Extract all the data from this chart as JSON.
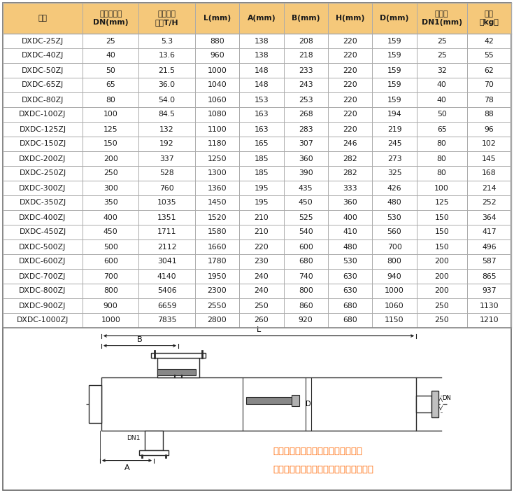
{
  "header_bg": "#F5C87A",
  "header_text_color": "#1a1a1a",
  "border_color": "#AAAAAA",
  "columns": [
    "型号",
    "进出口直径\nDN(mm)",
    "最大处理\n流量T/H",
    "L(mm)",
    "A(mm)",
    "B(mm)",
    "H(mm)",
    "D(mm)",
    "排污口\nDN1(mm)",
    "重量\n（kg）"
  ],
  "col_weights": [
    1.35,
    0.95,
    0.95,
    0.75,
    0.75,
    0.75,
    0.75,
    0.75,
    0.85,
    0.75
  ],
  "rows": [
    [
      "DXDC-25ZJ",
      "25",
      "5.3",
      "880",
      "138",
      "208",
      "220",
      "159",
      "25",
      "42"
    ],
    [
      "DXDC-40ZJ",
      "40",
      "13.6",
      "960",
      "138",
      "218",
      "220",
      "159",
      "25",
      "55"
    ],
    [
      "DXDC-50ZJ",
      "50",
      "21.5",
      "1000",
      "148",
      "233",
      "220",
      "159",
      "32",
      "62"
    ],
    [
      "DXDC-65ZJ",
      "65",
      "36.0",
      "1040",
      "148",
      "243",
      "220",
      "159",
      "40",
      "70"
    ],
    [
      "DXDC-80ZJ",
      "80",
      "54.0",
      "1060",
      "153",
      "253",
      "220",
      "159",
      "40",
      "78"
    ],
    [
      "DXDC-100ZJ",
      "100",
      "84.5",
      "1080",
      "163",
      "268",
      "220",
      "194",
      "50",
      "88"
    ],
    [
      "DXDC-125ZJ",
      "125",
      "132",
      "1100",
      "163",
      "283",
      "220",
      "219",
      "65",
      "96"
    ],
    [
      "DXDC-150ZJ",
      "150",
      "192",
      "1180",
      "165",
      "307",
      "246",
      "245",
      "80",
      "102"
    ],
    [
      "DXDC-200ZJ",
      "200",
      "337",
      "1250",
      "185",
      "360",
      "282",
      "273",
      "80",
      "145"
    ],
    [
      "DXDC-250ZJ",
      "250",
      "528",
      "1300",
      "185",
      "390",
      "282",
      "325",
      "80",
      "168"
    ],
    [
      "DXDC-300ZJ",
      "300",
      "760",
      "1360",
      "195",
      "435",
      "333",
      "426",
      "100",
      "214"
    ],
    [
      "DXDC-350ZJ",
      "350",
      "1035",
      "1450",
      "195",
      "450",
      "360",
      "480",
      "125",
      "252"
    ],
    [
      "DXDC-400ZJ",
      "400",
      "1351",
      "1520",
      "210",
      "525",
      "400",
      "530",
      "150",
      "364"
    ],
    [
      "DXDC-450ZJ",
      "450",
      "1711",
      "1580",
      "210",
      "540",
      "410",
      "560",
      "150",
      "417"
    ],
    [
      "DXDC-500ZJ",
      "500",
      "2112",
      "1660",
      "220",
      "600",
      "480",
      "700",
      "150",
      "496"
    ],
    [
      "DXDC-600ZJ",
      "600",
      "3041",
      "1780",
      "230",
      "680",
      "530",
      "800",
      "200",
      "587"
    ],
    [
      "DXDC-700ZJ",
      "700",
      "4140",
      "1950",
      "240",
      "740",
      "630",
      "940",
      "200",
      "865"
    ],
    [
      "DXDC-800ZJ",
      "800",
      "5406",
      "2300",
      "240",
      "800",
      "630",
      "1000",
      "200",
      "937"
    ],
    [
      "DXDC-900ZJ",
      "900",
      "6659",
      "2550",
      "250",
      "860",
      "680",
      "1060",
      "250",
      "1130"
    ],
    [
      "DXDC-1000ZJ",
      "1000",
      "7835",
      "2800",
      "260",
      "920",
      "680",
      "1150",
      "250",
      "1210"
    ]
  ],
  "diagram_text1": "该水处理仪适合安装于直角拐弯处，",
  "diagram_text2": "且需水处理仪本身具备过滤功能的系统中",
  "diagram_text_color": "#FF6600",
  "fig_bg": "#FFFFFF"
}
